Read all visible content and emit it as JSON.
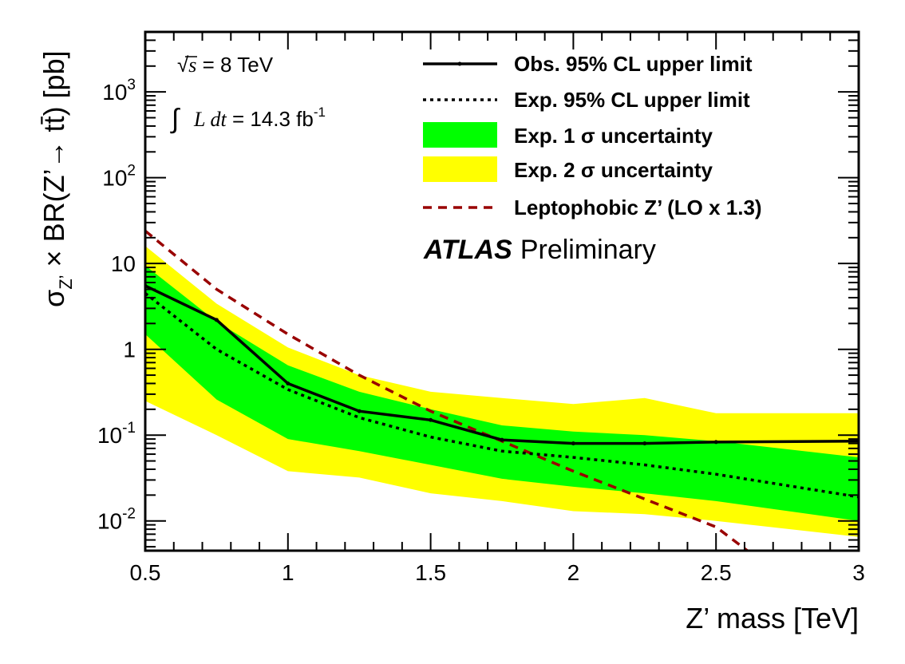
{
  "chart_data": {
    "type": "line",
    "ylog": true,
    "xlim": [
      0.5,
      3.0
    ],
    "ylim": [
      0.0045,
      5000
    ],
    "xlabel": "Z’ mass [TeV]",
    "ylabel": {
      "sigma": "σ",
      "sub": "Z’",
      "rest": " × BR(Z’→ tt̄) [pb]"
    },
    "xticks": [
      "0.5",
      "1",
      "1.5",
      "2",
      "2.5",
      "3"
    ],
    "xtick_values": [
      0.5,
      1.0,
      1.5,
      2.0,
      2.5,
      3.0
    ],
    "yticks": [
      {
        "value": 0.01,
        "base": "10",
        "exp": "-2"
      },
      {
        "value": 0.1,
        "base": "10",
        "exp": "-1"
      },
      {
        "value": 1,
        "base": "1",
        "exp": ""
      },
      {
        "value": 10,
        "base": "10",
        "exp": ""
      },
      {
        "value": 100,
        "base": "10",
        "exp": "2"
      },
      {
        "value": 1000,
        "base": "10",
        "exp": "3"
      }
    ],
    "annotations": {
      "energy_sqrt": "√",
      "energy_s": "s",
      "energy_value": " = 8 TeV",
      "lumi_integral": "∫",
      "lumi_L": "L dt",
      "lumi_value": " = 14.3 fb",
      "lumi_exp": "-1",
      "experiment": "ATLAS",
      "status": "Preliminary"
    },
    "legend_position": "top-right",
    "series": [
      {
        "name": "Obs. 95% CL upper limit",
        "style": "solid",
        "color": "#000000",
        "x": [
          0.5,
          0.75,
          1.0,
          1.25,
          1.5,
          1.75,
          2.0,
          2.25,
          2.5,
          3.0
        ],
        "values": [
          5.5,
          2.2,
          0.4,
          0.19,
          0.15,
          0.088,
          0.08,
          0.08,
          0.083,
          0.085
        ]
      },
      {
        "name": "Exp. 95% CL upper limit",
        "style": "dotted",
        "color": "#000000",
        "x": [
          0.5,
          0.75,
          1.0,
          1.25,
          1.5,
          1.75,
          2.0,
          2.25,
          2.5,
          3.0
        ],
        "values": [
          4.5,
          1.0,
          0.34,
          0.16,
          0.095,
          0.065,
          0.055,
          0.045,
          0.035,
          0.019
        ]
      },
      {
        "name": "Exp. 1 σ uncertainty",
        "style": "band",
        "color": "#00ff00",
        "x": [
          0.5,
          0.75,
          1.0,
          1.25,
          1.5,
          1.75,
          2.0,
          2.25,
          2.5,
          3.0
        ],
        "upper": [
          9.5,
          2.1,
          0.65,
          0.32,
          0.2,
          0.13,
          0.11,
          0.1,
          0.085,
          0.055
        ],
        "lower": [
          1.5,
          0.26,
          0.09,
          0.065,
          0.045,
          0.031,
          0.025,
          0.021,
          0.017,
          0.01
        ]
      },
      {
        "name": "Exp. 2 σ uncertainty",
        "style": "band",
        "color": "#ffff00",
        "x": [
          0.5,
          0.75,
          1.0,
          1.25,
          1.5,
          1.75,
          2.0,
          2.25,
          2.5,
          3.0
        ],
        "upper": [
          16.0,
          3.4,
          1.05,
          0.5,
          0.32,
          0.27,
          0.23,
          0.27,
          0.18,
          0.18
        ],
        "lower": [
          0.25,
          0.1,
          0.038,
          0.032,
          0.021,
          0.017,
          0.013,
          0.012,
          0.01,
          0.0065
        ]
      },
      {
        "name": "Leptophobic Z’ (LO x 1.3)",
        "style": "dashed",
        "color": "#990000",
        "x": [
          0.5,
          0.75,
          1.0,
          1.25,
          1.5,
          1.75,
          2.0,
          2.25,
          2.5,
          2.61
        ],
        "values": [
          24.0,
          5.0,
          1.5,
          0.5,
          0.19,
          0.085,
          0.038,
          0.018,
          0.0085,
          0.0045
        ]
      }
    ]
  }
}
